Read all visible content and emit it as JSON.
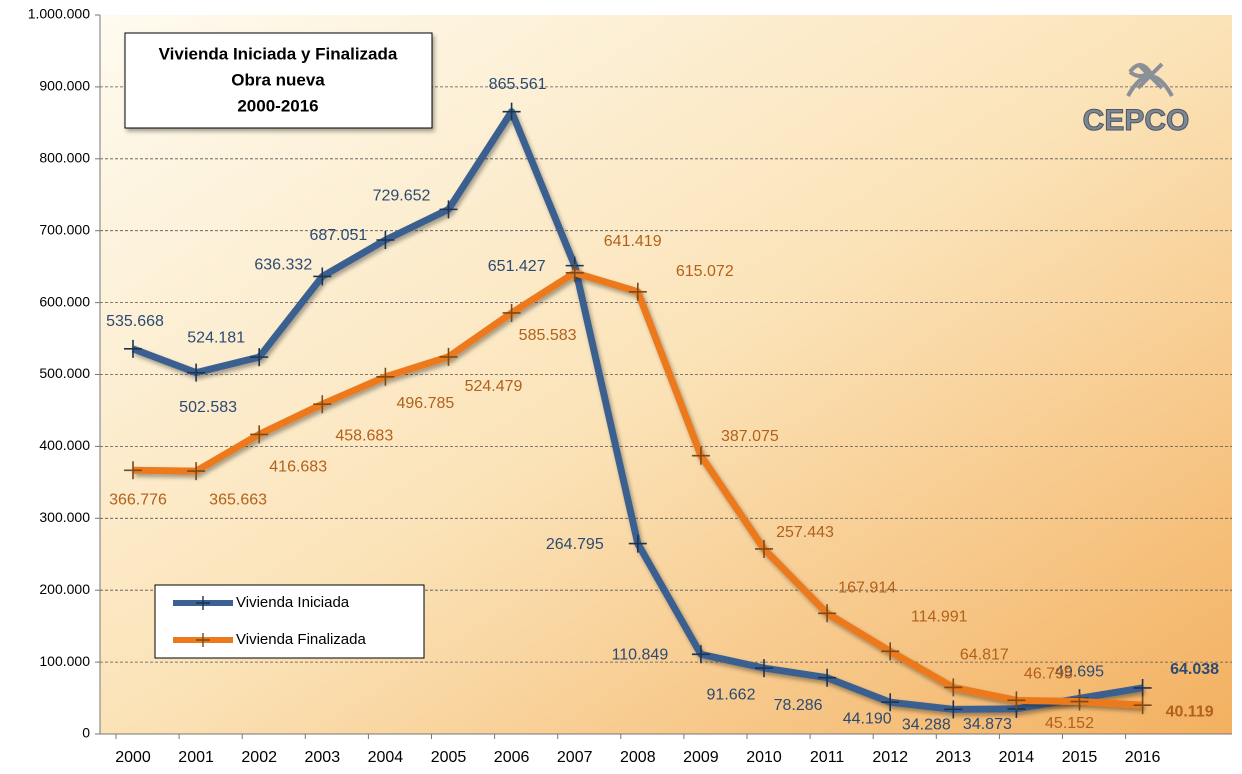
{
  "chart_data": {
    "type": "line",
    "title": "Vivienda Iniciada y Finalizada",
    "subtitle": [
      "Obra nueva",
      "2000-2016"
    ],
    "logo_text": "CEPCO",
    "categories": [
      "2000",
      "2001",
      "2002",
      "2003",
      "2004",
      "2005",
      "2006",
      "2007",
      "2008",
      "2009",
      "2010",
      "2011",
      "2012",
      "2013",
      "2014",
      "2015",
      "2016"
    ],
    "series": [
      {
        "name": "Vivienda Iniciada",
        "color": "#3b6190",
        "label_color": "#2d4a72",
        "values": [
          535668,
          502583,
          524181,
          636332,
          687051,
          729652,
          865561,
          651427,
          264795,
          110849,
          91662,
          78286,
          44190,
          34288,
          34873,
          49695,
          64038
        ],
        "value_labels": [
          "535.668",
          "502.583",
          "524.181",
          "636.332",
          "687.051",
          "729.652",
          "865.561",
          "651.427",
          "264.795",
          "110.849",
          "91.662",
          "78.286",
          "44.190",
          "34.288",
          "34.873",
          "49.695",
          "64.038"
        ]
      },
      {
        "name": "Vivienda Finalizada",
        "color": "#ec7a1c",
        "label_color": "#b2611a",
        "values": [
          366776,
          365663,
          416683,
          458683,
          496785,
          524479,
          585583,
          641419,
          615072,
          387075,
          257443,
          167914,
          114991,
          64817,
          46795,
          45152,
          40119
        ],
        "value_labels": [
          "366.776",
          "365.663",
          "416.683",
          "458.683",
          "496.785",
          "524.479",
          "585.583",
          "641.419",
          "615.072",
          "387.075",
          "257.443",
          "167.914",
          "114.991",
          "64.817",
          "46.795",
          "45.152",
          "40.119"
        ]
      }
    ],
    "ylim": [
      0,
      1000000
    ],
    "yticks": [
      0,
      {
        "value": 100000,
        "label": "100.000"
      },
      {
        "value": 200000,
        "label": "200.000"
      },
      {
        "value": 300000,
        "label": "300.000"
      },
      {
        "value": 400000,
        "label": "400.000"
      },
      {
        "value": 500000,
        "label": "500.000"
      },
      {
        "value": 600000,
        "label": "600.000"
      },
      {
        "value": 700000,
        "label": "700.000"
      },
      {
        "value": 800000,
        "label": "800.000"
      },
      {
        "value": 900000,
        "label": "900.000"
      },
      {
        "value": 1000000,
        "label": "1.000.000"
      }
    ],
    "grid": true,
    "legend": "lower left"
  }
}
